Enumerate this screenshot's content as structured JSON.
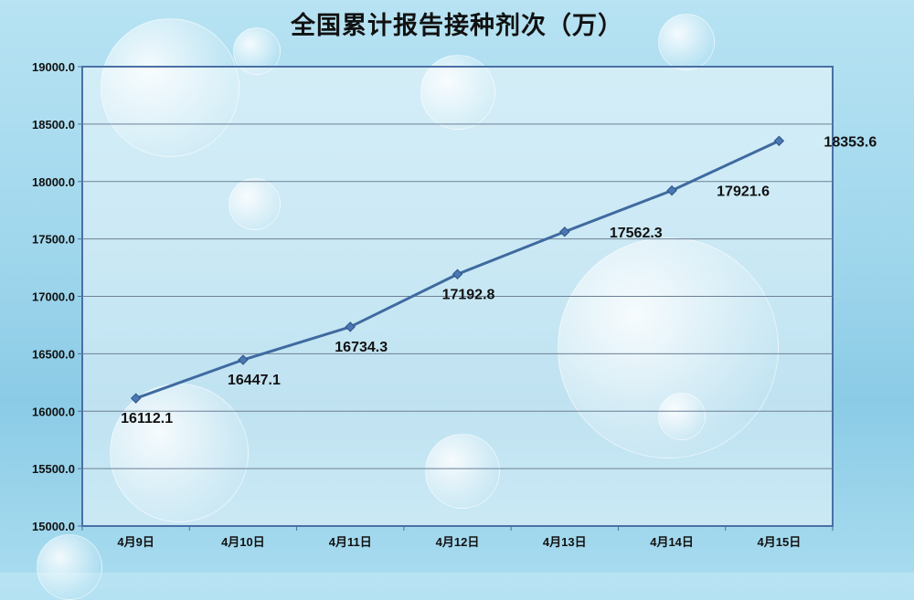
{
  "chart_data": {
    "type": "line",
    "title": "全国累计报告接种剂次（万）",
    "categories": [
      "4月9日",
      "4月10日",
      "4月11日",
      "4月12日",
      "4月13日",
      "4月14日",
      "4月15日"
    ],
    "values": [
      16112.1,
      16447.1,
      16734.3,
      17192.8,
      17562.3,
      17921.6,
      18353.6
    ],
    "data_labels": [
      "16112.1",
      "16447.1",
      "16734.3",
      "17192.8",
      "17562.3",
      "17921.6",
      "18353.6"
    ],
    "ylim": [
      15000,
      19000
    ],
    "yticks": [
      15000,
      15500,
      16000,
      16500,
      17000,
      17500,
      18000,
      18500,
      19000
    ],
    "ytick_labels": [
      "15000.0",
      "15500.0",
      "16000.0",
      "16500.0",
      "17000.0",
      "17500.0",
      "18000.0",
      "18500.0",
      "19000.0"
    ],
    "grid": true,
    "line_color": "#3f6aa0",
    "marker_color": "#4a78b5"
  }
}
